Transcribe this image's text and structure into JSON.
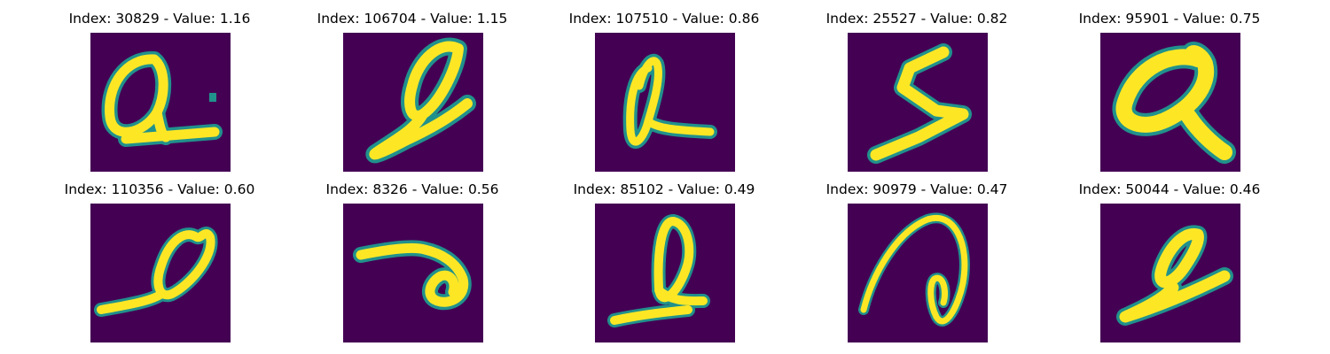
{
  "colors": {
    "background": "#440154",
    "edge": "#21918c",
    "mid": "#5ec962",
    "stroke": "#fde725"
  },
  "panels": [
    {
      "title": "Index: 30829 - Value: 1.16",
      "index": 30829,
      "value": 1.16
    },
    {
      "title": "Index: 106704 - Value: 1.15",
      "index": 106704,
      "value": 1.15
    },
    {
      "title": "Index: 107510 - Value: 0.86",
      "index": 107510,
      "value": 0.86
    },
    {
      "title": "Index: 25527 - Value: 0.82",
      "index": 25527,
      "value": 0.82
    },
    {
      "title": "Index: 95901 - Value: 0.75",
      "index": 95901,
      "value": 0.75
    },
    {
      "title": "Index: 110356 - Value: 0.60",
      "index": 110356,
      "value": 0.6
    },
    {
      "title": "Index: 8326 - Value: 0.56",
      "index": 8326,
      "value": 0.56
    },
    {
      "title": "Index: 85102 - Value: 0.49",
      "index": 85102,
      "value": 0.49
    },
    {
      "title": "Index: 90979 - Value: 0.47",
      "index": 90979,
      "value": 0.47
    },
    {
      "title": "Index: 50044 - Value: 0.46",
      "index": 50044,
      "value": 0.46
    }
  ]
}
